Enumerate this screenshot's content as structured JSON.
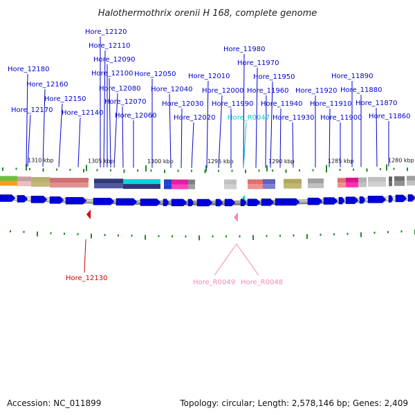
{
  "title": "Halothermothrix orenii H 168, complete genome",
  "footer": {
    "accession": "Accession: NC_011899",
    "topology": "Topology: circular; Length: 2,578,146 bp; Genes: 2,409"
  },
  "colors": {
    "forward_gene": "#0000dd",
    "reverse_gene_marker": "#dd0000",
    "rna_marker": "#ee88bb",
    "label_blue": "#0000cc",
    "label_cyan": "#00cccc",
    "label_red": "#cc0000",
    "label_pink": "#ee88bb",
    "tick_green": "#228822"
  },
  "kbp_ticks": [
    {
      "text": "1310 kbp"
    },
    {
      "text": "1305 kbp"
    },
    {
      "text": "1300 kbp"
    },
    {
      "text": "1295 kbp"
    },
    {
      "text": "1290 kbp"
    },
    {
      "text": "1285 kbp"
    },
    {
      "text": "1280 kbp"
    }
  ],
  "top_labels": [
    {
      "text": "Hore_12120",
      "color": "blue"
    },
    {
      "text": "Hore_12110",
      "color": "blue"
    },
    {
      "text": "Hore_12090",
      "color": "blue"
    },
    {
      "text": "Hore_12180",
      "color": "blue"
    },
    {
      "text": "Hore_12100",
      "color": "blue"
    },
    {
      "text": "Hore_12160",
      "color": "blue"
    },
    {
      "text": "Hore_12080",
      "color": "blue"
    },
    {
      "text": "Hore_12150",
      "color": "blue"
    },
    {
      "text": "Hore_12070",
      "color": "blue"
    },
    {
      "text": "Hore_12170",
      "color": "blue"
    },
    {
      "text": "Hore_12140",
      "color": "blue"
    },
    {
      "text": "Hore_12060",
      "color": "blue"
    },
    {
      "text": "Hore_12050",
      "color": "blue"
    },
    {
      "text": "Hore_12040",
      "color": "blue"
    },
    {
      "text": "Hore_12030",
      "color": "blue"
    },
    {
      "text": "Hore_12020",
      "color": "blue"
    },
    {
      "text": "Hore_12010",
      "color": "blue"
    },
    {
      "text": "Hore_12000",
      "color": "blue"
    },
    {
      "text": "Hore_11990",
      "color": "blue"
    },
    {
      "text": "Hore_11980",
      "color": "blue"
    },
    {
      "text": "Hore_11970",
      "color": "blue"
    },
    {
      "text": "Hore_R0047",
      "color": "cyan"
    },
    {
      "text": "Hore_11950",
      "color": "blue"
    },
    {
      "text": "Hore_11960",
      "color": "blue"
    },
    {
      "text": "Hore_11940",
      "color": "blue"
    },
    {
      "text": "Hore_11930",
      "color": "blue"
    },
    {
      "text": "Hore_11920",
      "color": "blue"
    },
    {
      "text": "Hore_11910",
      "color": "blue"
    },
    {
      "text": "Hore_11900",
      "color": "blue"
    },
    {
      "text": "Hore_11890",
      "color": "blue"
    },
    {
      "text": "Hore_11880",
      "color": "blue"
    },
    {
      "text": "Hore_11870",
      "color": "blue"
    },
    {
      "text": "Hore_11860",
      "color": "blue"
    }
  ],
  "bottom_labels": [
    {
      "text": "Hore_12130",
      "color": "red"
    },
    {
      "text": "Hore_R0049",
      "color": "pink"
    },
    {
      "text": "Hore_R0048",
      "color": "pink"
    }
  ]
}
